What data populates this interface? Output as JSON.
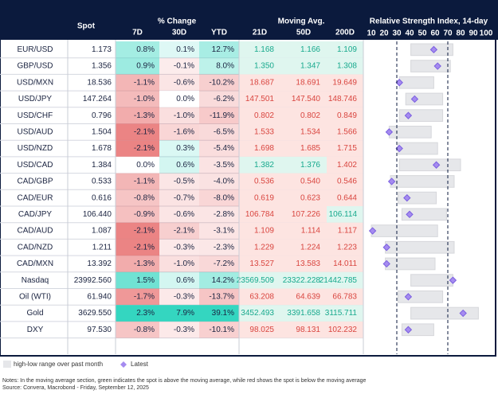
{
  "header": {
    "spot": "Spot",
    "change": "% Change",
    "change_cols": [
      "7D",
      "30D",
      "YTD"
    ],
    "ma": "Moving Avg.",
    "ma_cols": [
      "21D",
      "50D",
      "200D"
    ],
    "rsi": "Relative Strength Index, 14-day"
  },
  "rsi_axis": {
    "xlim": [
      10,
      100
    ],
    "xticks": [
      10,
      20,
      30,
      40,
      50,
      60,
      70,
      80,
      90,
      100
    ],
    "bands": [
      30,
      70
    ]
  },
  "table": {
    "rows": [
      {
        "name": "EUR/USD",
        "spot": "1.173",
        "chg": [
          "0.8%",
          "0.1%",
          "12.7%"
        ],
        "ma": [
          "1.168",
          "1.166",
          "1.109"
        ],
        "rsi": {
          "low": 41,
          "high": 74,
          "latest": 59
        }
      },
      {
        "name": "GBP/USD",
        "spot": "1.356",
        "chg": [
          "0.9%",
          "-0.1%",
          "8.0%"
        ],
        "ma": [
          "1.350",
          "1.347",
          "1.308"
        ],
        "rsi": {
          "low": 41,
          "high": 72,
          "latest": 62
        }
      },
      {
        "name": "USD/MXN",
        "spot": "18.536",
        "chg": [
          "-1.1%",
          "-0.6%",
          "-10.2%"
        ],
        "ma": [
          "18.687",
          "18.691",
          "19.649"
        ],
        "rsi": {
          "low": 32,
          "high": 59,
          "latest": 32
        }
      },
      {
        "name": "USD/JPY",
        "spot": "147.264",
        "chg": [
          "-1.0%",
          "0.0%",
          "-6.2%"
        ],
        "ma": [
          "147.501",
          "147.540",
          "148.746"
        ],
        "rsi": {
          "low": 37,
          "high": 66,
          "latest": 44
        }
      },
      {
        "name": "USD/CHF",
        "spot": "0.796",
        "chg": [
          "-1.3%",
          "-1.0%",
          "-11.9%"
        ],
        "ma": [
          "0.802",
          "0.802",
          "0.849"
        ],
        "rsi": {
          "low": 32,
          "high": 66,
          "latest": 39
        }
      },
      {
        "name": "USD/AUD",
        "spot": "1.504",
        "chg": [
          "-2.1%",
          "-1.6%",
          "-6.5%"
        ],
        "ma": [
          "1.533",
          "1.534",
          "1.566"
        ],
        "rsi": {
          "low": 24,
          "high": 57,
          "latest": 24
        }
      },
      {
        "name": "USD/NZD",
        "spot": "1.678",
        "chg": [
          "-2.1%",
          "0.3%",
          "-5.4%"
        ],
        "ma": [
          "1.698",
          "1.685",
          "1.715"
        ],
        "rsi": {
          "low": 31,
          "high": 62,
          "latest": 32
        }
      },
      {
        "name": "USD/CAD",
        "spot": "1.384",
        "chg": [
          "0.0%",
          "0.6%",
          "-3.5%"
        ],
        "ma": [
          "1.382",
          "1.376",
          "1.402"
        ],
        "rsi": {
          "low": 32,
          "high": 80,
          "latest": 61
        }
      },
      {
        "name": "CAD/GBP",
        "spot": "0.533",
        "chg": [
          "-1.1%",
          "-0.5%",
          "-4.0%"
        ],
        "ma": [
          "0.536",
          "0.540",
          "0.546"
        ],
        "rsi": {
          "low": 25,
          "high": 75,
          "latest": 26
        }
      },
      {
        "name": "CAD/EUR",
        "spot": "0.616",
        "chg": [
          "-0.8%",
          "-0.7%",
          "-8.0%"
        ],
        "ma": [
          "0.619",
          "0.623",
          "0.644"
        ],
        "rsi": {
          "low": 31,
          "high": 61,
          "latest": 38
        }
      },
      {
        "name": "CAD/JPY",
        "spot": "106.440",
        "chg": [
          "-0.9%",
          "-0.6%",
          "-2.8%"
        ],
        "ma": [
          "106.784",
          "107.226",
          "106.114"
        ],
        "rsi": {
          "low": 34,
          "high": 69,
          "latest": 40
        }
      },
      {
        "name": "CAD/AUD",
        "spot": "1.087",
        "chg": [
          "-2.1%",
          "-2.1%",
          "-3.1%"
        ],
        "ma": [
          "1.109",
          "1.114",
          "1.117"
        ],
        "rsi": {
          "low": 10,
          "high": 62,
          "latest": 11
        }
      },
      {
        "name": "CAD/NZD",
        "spot": "1.211",
        "chg": [
          "-2.1%",
          "-0.3%",
          "-2.3%"
        ],
        "ma": [
          "1.229",
          "1.224",
          "1.223"
        ],
        "rsi": {
          "low": 21,
          "high": 75,
          "latest": 22
        }
      },
      {
        "name": "CAD/MXN",
        "spot": "13.392",
        "chg": [
          "-1.3%",
          "-1.0%",
          "-7.2%"
        ],
        "ma": [
          "13.527",
          "13.583",
          "14.011"
        ],
        "rsi": {
          "low": 21,
          "high": 60,
          "latest": 22
        }
      },
      {
        "name": "Nasdaq",
        "spot": "23992.560",
        "chg": [
          "1.5%",
          "0.6%",
          "14.2%"
        ],
        "ma": [
          "23569.509",
          "23322.228",
          "21442.785"
        ],
        "rsi": {
          "low": 41,
          "high": 74,
          "latest": 74
        }
      },
      {
        "name": "Oil (WTI)",
        "spot": "61.940",
        "chg": [
          "-1.7%",
          "-0.3%",
          "-13.7%"
        ],
        "ma": [
          "63.208",
          "64.639",
          "66.783"
        ],
        "rsi": {
          "low": 31,
          "high": 66,
          "latest": 39
        }
      },
      {
        "name": "Gold",
        "spot": "3629.550",
        "chg": [
          "2.3%",
          "7.9%",
          "39.1%"
        ],
        "ma": [
          "3452.493",
          "3391.658",
          "3115.711"
        ],
        "rsi": {
          "low": 41,
          "high": 94,
          "latest": 82
        }
      },
      {
        "name": "DXY",
        "spot": "97.530",
        "chg": [
          "-0.8%",
          "-0.3%",
          "-10.1%"
        ],
        "ma": [
          "98.025",
          "98.131",
          "102.232"
        ],
        "rsi": {
          "low": 34,
          "high": 59,
          "latest": 39
        }
      }
    ]
  },
  "legend": {
    "range": "high-low range over past month",
    "latest": "Latest"
  },
  "notes": [
    "Notes: In the moving average section, green indicates the spot is above the moving average, while red shows the spot is below the moving average",
    "Source: Convera, Macrobond - Friday, September 12, 2025"
  ]
}
